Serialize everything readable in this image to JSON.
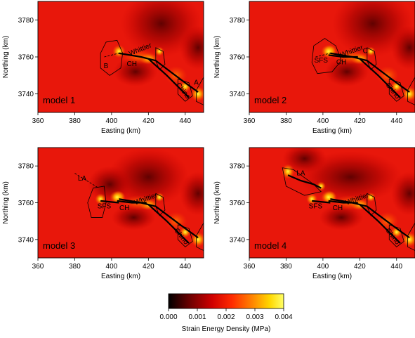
{
  "chart_data": {
    "type": "heatmap",
    "panels": [
      {
        "label": "model 1",
        "xlabel": "Easting (km)",
        "ylabel": "Northing (km)",
        "xlim": [
          360,
          450
        ],
        "ylim": [
          3730,
          3790
        ],
        "xticks": [
          360,
          380,
          400,
          420,
          440
        ],
        "yticks": [
          3740,
          3760,
          3780
        ],
        "fault_labels": [
          {
            "text": "Whittier",
            "x": 416,
            "y": 3763,
            "angle": -22
          },
          {
            "text": "CH",
            "x": 411,
            "y": 3755,
            "angle": 0
          },
          {
            "text": "Chino",
            "x": 438,
            "y": 3741,
            "angle": 52
          },
          {
            "text": "B",
            "x": 397,
            "y": 3754,
            "angle": 0
          },
          {
            "text": "A",
            "x": 446,
            "y": 3745,
            "angle": 0
          }
        ]
      },
      {
        "label": "model 2",
        "xlabel": "Easting (km)",
        "ylabel": "Northing (km)",
        "xlim": [
          360,
          450
        ],
        "ylim": [
          3730,
          3790
        ],
        "xticks": [
          360,
          380,
          400,
          420,
          440
        ],
        "yticks": [
          3740,
          3760,
          3780
        ],
        "fault_labels": [
          {
            "text": "Whittier",
            "x": 416,
            "y": 3762,
            "angle": -20
          },
          {
            "text": "C",
            "x": 423,
            "y": 3762,
            "angle": 0
          },
          {
            "text": "SFS",
            "x": 399,
            "y": 3757,
            "angle": 0
          },
          {
            "text": "CH",
            "x": 410,
            "y": 3756,
            "angle": 0
          },
          {
            "text": "Chino",
            "x": 437,
            "y": 3741,
            "angle": 52
          }
        ]
      },
      {
        "label": "model 3",
        "xlabel": "Easting (km)",
        "ylabel": "Northing (km)",
        "xlim": [
          360,
          450
        ],
        "ylim": [
          3730,
          3790
        ],
        "xticks": [
          360,
          380,
          400,
          420,
          440
        ],
        "yticks": [
          3740,
          3760,
          3780
        ],
        "fault_labels": [
          {
            "text": "LA",
            "x": 384,
            "y": 3772,
            "angle": 0
          },
          {
            "text": "Whittier",
            "x": 419,
            "y": 3761,
            "angle": -20
          },
          {
            "text": "SFS",
            "x": 396,
            "y": 3757,
            "angle": 0
          },
          {
            "text": "CH",
            "x": 407,
            "y": 3756,
            "angle": 0
          },
          {
            "text": "Chino",
            "x": 437,
            "y": 3741,
            "angle": 52
          }
        ]
      },
      {
        "label": "model 4",
        "xlabel": "Easting (km)",
        "ylabel": "Northing (km)",
        "xlim": [
          360,
          450
        ],
        "ylim": [
          3730,
          3790
        ],
        "xticks": [
          360,
          380,
          400,
          420,
          440
        ],
        "yticks": [
          3740,
          3760,
          3780
        ],
        "fault_labels": [
          {
            "text": "LA",
            "x": 388,
            "y": 3775,
            "angle": 0
          },
          {
            "text": "Whittier",
            "x": 419,
            "y": 3761,
            "angle": -20
          },
          {
            "text": "SFS",
            "x": 396,
            "y": 3757,
            "angle": 0
          },
          {
            "text": "CH",
            "x": 408,
            "y": 3756,
            "angle": 0
          },
          {
            "text": "Chino",
            "x": 437,
            "y": 3741,
            "angle": 52
          }
        ]
      }
    ],
    "colorbar": {
      "label": "Strain Energy Density (MPa)",
      "min": 0.0,
      "max": 0.004,
      "ticks": [
        "0.000",
        "0.001",
        "0.002",
        "0.003",
        "0.004"
      ],
      "colormap": [
        "#000000",
        "#8a0000",
        "#e00000",
        "#ff3300",
        "#ff8c00",
        "#ffe600",
        "#ffff66"
      ]
    },
    "colors": {
      "background_field": "#e8170b",
      "fault_trace": "#000000",
      "contour": "#000000"
    }
  }
}
